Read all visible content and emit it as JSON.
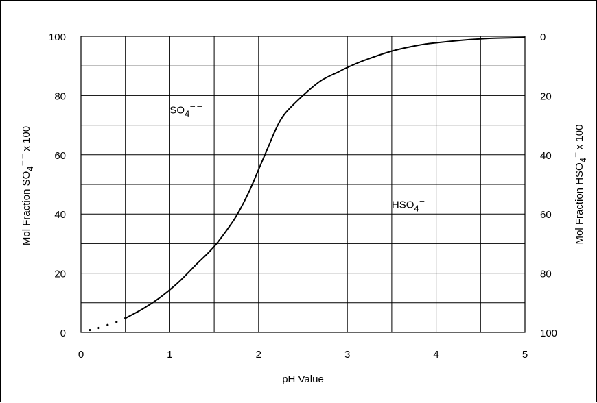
{
  "chart_data": {
    "type": "line",
    "xlabel": "pH Value",
    "ylabel": {
      "main": "Mol Fraction SO",
      "sub": "4",
      "sup": "– –",
      "tail": " x 100"
    },
    "ylabel_right": {
      "main": "Mol Fraction HSO",
      "sub": "4",
      "sup": "–",
      "tail": " x 100"
    },
    "xlim": [
      0,
      5
    ],
    "ylim": [
      0,
      100
    ],
    "x_ticks": [
      0,
      1,
      2,
      3,
      4,
      5
    ],
    "x_tick_labels": [
      "0",
      "1",
      "2",
      "3",
      "4",
      "5"
    ],
    "y_ticks": [
      0,
      20,
      40,
      60,
      80,
      100
    ],
    "y_tick_labels": [
      "0",
      "20",
      "40",
      "60",
      "80",
      "100"
    ],
    "y_right_tick_labels": [
      "100",
      "80",
      "60",
      "40",
      "20",
      "0"
    ],
    "grid": {
      "x_step": 0.5,
      "y_step": 10
    },
    "annotations": [
      {
        "main": "SO",
        "sub": "4",
        "sup": "– –",
        "x": 1.0,
        "y": 74
      },
      {
        "main": "HSO",
        "sub": "4",
        "sup": "–",
        "x": 3.5,
        "y": 42
      }
    ],
    "series": [
      {
        "style": "dotted",
        "x": [
          0.1,
          0.2,
          0.3,
          0.4,
          0.5
        ],
        "y": [
          0.8,
          1.5,
          2.5,
          3.5,
          4.8
        ]
      },
      {
        "style": "solid",
        "x": [
          0.5,
          0.7,
          0.9,
          1.1,
          1.3,
          1.5,
          1.7,
          1.8,
          1.9,
          2.0,
          2.1,
          2.2,
          2.3,
          2.5,
          2.7,
          2.9,
          3.0,
          3.2,
          3.5,
          3.8,
          4.0,
          4.3,
          4.6,
          5.0
        ],
        "y": [
          4.8,
          8,
          12,
          17,
          23,
          29,
          37,
          42,
          48,
          55,
          62,
          69,
          74,
          80,
          85,
          88,
          89.5,
          92,
          95,
          97,
          97.8,
          98.7,
          99.3,
          99.6
        ]
      }
    ]
  }
}
